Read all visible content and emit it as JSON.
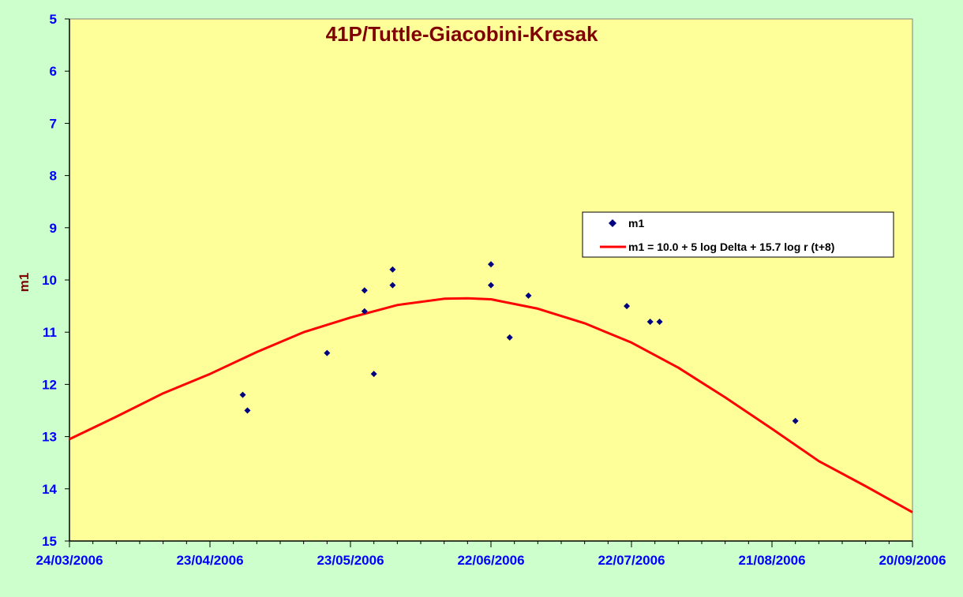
{
  "chart_data": {
    "type": "scatter",
    "title": "41P/Tuttle-Giacobini-Kresak",
    "ylabel": "m1",
    "xlabel": "",
    "x_axis": {
      "type": "date",
      "range": [
        "2006-03-24",
        "2006-09-20"
      ],
      "tick_labels": [
        "24/03/2006",
        "23/04/2006",
        "23/05/2006",
        "22/06/2006",
        "22/07/2006",
        "21/08/2006",
        "20/09/2006"
      ],
      "tick_dates": [
        "2006-03-24",
        "2006-04-23",
        "2006-05-23",
        "2006-06-22",
        "2006-07-22",
        "2006-08-21",
        "2006-09-20"
      ]
    },
    "y_axis": {
      "range": [
        5,
        15
      ],
      "inverted": true,
      "tick_labels": [
        "5",
        "6",
        "7",
        "8",
        "9",
        "10",
        "11",
        "12",
        "13",
        "14",
        "15"
      ]
    },
    "grid": false,
    "legend_position": "right",
    "series": [
      {
        "name": "m1",
        "kind": "scatter",
        "color": "#000080",
        "points": [
          {
            "x": "2006-04-30",
            "y": 12.2
          },
          {
            "x": "2006-05-01",
            "y": 12.5
          },
          {
            "x": "2006-05-18",
            "y": 11.4
          },
          {
            "x": "2006-05-26",
            "y": 10.2
          },
          {
            "x": "2006-05-26",
            "y": 10.6
          },
          {
            "x": "2006-05-28",
            "y": 11.8
          },
          {
            "x": "2006-06-01",
            "y": 9.8
          },
          {
            "x": "2006-06-01",
            "y": 10.1
          },
          {
            "x": "2006-06-22",
            "y": 9.7
          },
          {
            "x": "2006-06-22",
            "y": 10.1
          },
          {
            "x": "2006-06-26",
            "y": 11.1
          },
          {
            "x": "2006-06-30",
            "y": 10.3
          },
          {
            "x": "2006-07-21",
            "y": 10.5
          },
          {
            "x": "2006-07-26",
            "y": 10.8
          },
          {
            "x": "2006-07-28",
            "y": 10.8
          },
          {
            "x": "2006-08-26",
            "y": 12.7
          }
        ]
      },
      {
        "name": "m1 = 10.0 + 5 log Delta + 15.7 log r (t+8)",
        "kind": "line",
        "color": "#ff0000",
        "points": [
          {
            "x": "2006-03-24",
            "y": 13.05
          },
          {
            "x": "2006-04-03",
            "y": 12.62
          },
          {
            "x": "2006-04-13",
            "y": 12.17
          },
          {
            "x": "2006-04-23",
            "y": 11.8
          },
          {
            "x": "2006-05-03",
            "y": 11.38
          },
          {
            "x": "2006-05-13",
            "y": 11.0
          },
          {
            "x": "2006-05-23",
            "y": 10.72
          },
          {
            "x": "2006-06-02",
            "y": 10.48
          },
          {
            "x": "2006-06-12",
            "y": 10.36
          },
          {
            "x": "2006-06-17",
            "y": 10.35
          },
          {
            "x": "2006-06-22",
            "y": 10.37
          },
          {
            "x": "2006-07-02",
            "y": 10.55
          },
          {
            "x": "2006-07-12",
            "y": 10.83
          },
          {
            "x": "2006-07-22",
            "y": 11.2
          },
          {
            "x": "2006-08-01",
            "y": 11.68
          },
          {
            "x": "2006-08-11",
            "y": 12.25
          },
          {
            "x": "2006-08-21",
            "y": 12.85
          },
          {
            "x": "2006-08-31",
            "y": 13.47
          },
          {
            "x": "2006-09-10",
            "y": 13.95
          },
          {
            "x": "2006-09-20",
            "y": 14.45
          }
        ]
      }
    ]
  },
  "colors": {
    "background": "#ccffcc",
    "plot_area": "#ffff99",
    "axis_text": "#0000ff",
    "title_text": "#800000"
  }
}
